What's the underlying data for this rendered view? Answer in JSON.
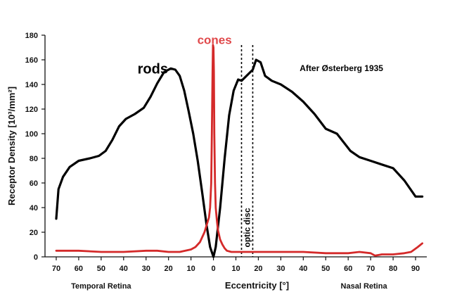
{
  "chart_data": {
    "type": "line",
    "title": "",
    "annotation": "After Østerberg 1935",
    "xlabel": "Eccentricity [°]",
    "ylabel": "Receptor Density [10³/mm²]",
    "xlim": [
      75,
      -95
    ],
    "ylim": [
      0,
      180
    ],
    "x_tick_labels": [
      "70",
      "60",
      "50",
      "40",
      "30",
      "20",
      "10",
      "0",
      "10",
      "20",
      "30",
      "40",
      "50",
      "60",
      "70",
      "80",
      "90"
    ],
    "y_tick_labels": [
      "0",
      "20",
      "40",
      "60",
      "80",
      "100",
      "120",
      "140",
      "160",
      "180"
    ],
    "region_labels": {
      "left": "Temporal Retina",
      "right": "Nasal Retina"
    },
    "optic_disc": {
      "label": "optic disc",
      "range": [
        -12.5,
        -17.5
      ]
    },
    "series": [
      {
        "name": "rods",
        "color": "#000000",
        "x": [
          70,
          69,
          67,
          64,
          60,
          55,
          51,
          48,
          45,
          42,
          39,
          35,
          31,
          28,
          25,
          22,
          19,
          17,
          15,
          13,
          11,
          9,
          7,
          5,
          3,
          1.5,
          0,
          -1,
          -3,
          -5,
          -7,
          -9,
          -11,
          -12.5,
          -17.5,
          -19,
          -21,
          -23,
          -26,
          -30,
          -35,
          -40,
          -45,
          -50,
          -55,
          -58,
          -61,
          -65,
          -70,
          -75,
          -80,
          -85,
          -90,
          -93
        ],
        "values": [
          31,
          55,
          65,
          73,
          78,
          80,
          82,
          86,
          95,
          106,
          112,
          116,
          121,
          130,
          141,
          150,
          153,
          152,
          147,
          135,
          118,
          100,
          78,
          52,
          25,
          8,
          0,
          8,
          40,
          80,
          115,
          135,
          144,
          143,
          152,
          160,
          158,
          147,
          143,
          140,
          134,
          126,
          116,
          104,
          100,
          93,
          86,
          81,
          78,
          75,
          72,
          62,
          49,
          49
        ]
      },
      {
        "name": "cones",
        "color": "#d42a2a",
        "x": [
          70,
          60,
          50,
          40,
          30,
          25,
          20,
          15,
          10,
          8,
          6,
          5,
          4,
          3,
          2,
          1.5,
          1,
          0.7,
          0.4,
          0.2,
          0,
          -0.2,
          -0.4,
          -0.7,
          -1,
          -1.5,
          -2,
          -3,
          -4,
          -5,
          -6,
          -8,
          -10,
          -12.5,
          -17.5,
          -20,
          -30,
          -40,
          -50,
          -55,
          -60,
          -65,
          -70,
          -72,
          -75,
          -80,
          -85,
          -88,
          -91,
          -93
        ],
        "values": [
          5,
          5,
          4,
          4,
          5,
          5,
          4,
          4,
          6,
          8,
          12,
          16,
          20,
          26,
          32,
          40,
          60,
          100,
          150,
          172,
          170,
          150,
          100,
          60,
          40,
          30,
          22,
          14,
          10,
          7,
          5,
          4,
          4,
          4,
          4,
          4,
          4,
          4,
          3,
          3,
          3,
          4,
          3,
          1,
          2,
          2,
          3,
          4,
          8,
          11
        ]
      }
    ]
  }
}
